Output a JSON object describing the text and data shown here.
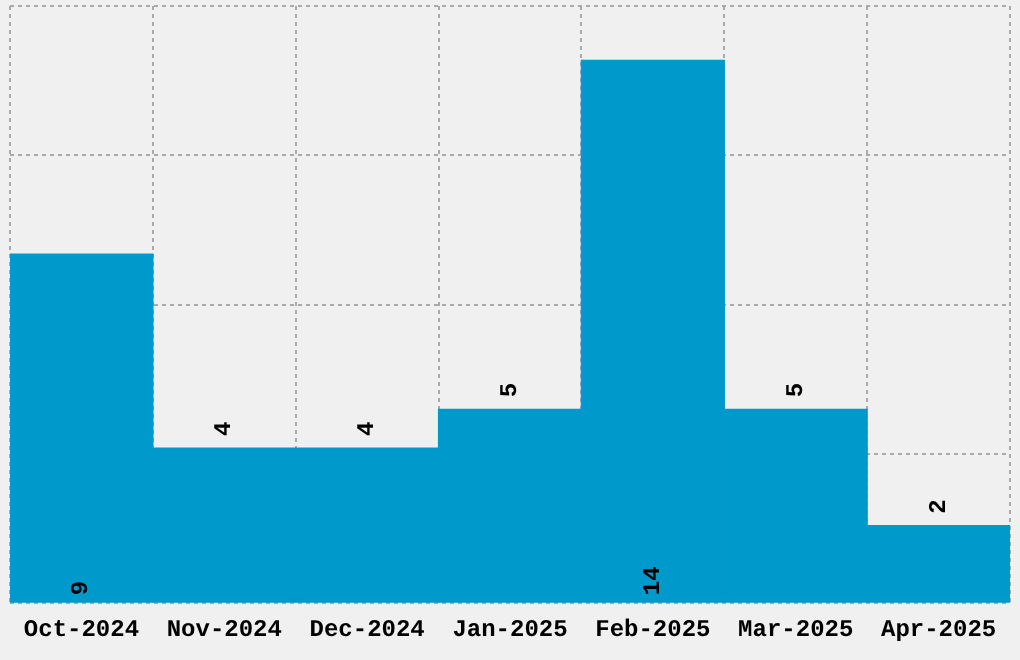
{
  "chart_data": {
    "type": "bar",
    "categories": [
      "Oct-2024",
      "Nov-2024",
      "Dec-2024",
      "Jan-2025",
      "Feb-2025",
      "Mar-2025",
      "Apr-2025"
    ],
    "values": [
      9,
      4,
      4,
      5,
      14,
      5,
      2
    ],
    "color": "#0099cc",
    "ylim": [
      0,
      15.4
    ],
    "yticks": [
      {
        "value": 0,
        "label": null
      },
      {
        "value": 3.85,
        "label": null
      },
      {
        "value": 7.7,
        "label": null
      },
      {
        "value": 11.55,
        "label": null
      },
      {
        "value": 15.4,
        "label": null
      }
    ],
    "tick_labels": "x",
    "grid": true,
    "data_labels": true
  }
}
